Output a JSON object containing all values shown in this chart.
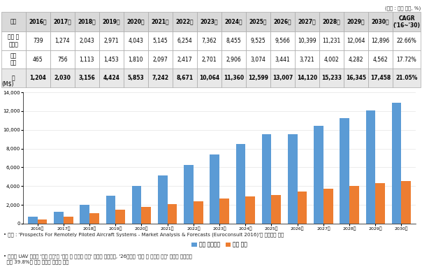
{
  "years": [
    "2016년",
    "2017년",
    "2018년",
    "2019년",
    "2020년",
    "2021년",
    "2022년",
    "2023년",
    "2024년",
    "2025년",
    "2026년",
    "2027년",
    "2028년",
    "2029년",
    "2030년"
  ],
  "operations": [
    739,
    1274,
    2043,
    2971,
    4043,
    5145,
    6254,
    7362,
    8455,
    9525,
    9566,
    10399,
    11231,
    12064,
    12896
  ],
  "manufacturing": [
    465,
    756,
    1113,
    1453,
    1810,
    2097,
    2417,
    2701,
    2906,
    3074,
    3441,
    3721,
    4002,
    4282,
    4562
  ],
  "total": [
    1204,
    2030,
    3156,
    4424,
    5853,
    7242,
    8671,
    10064,
    11360,
    12599,
    13007,
    14120,
    15233,
    16345,
    17458
  ],
  "bar_color_ops": "#5B9BD5",
  "bar_color_mfg": "#ED7D31",
  "unit_label": "(단위 : 백만 달러, %)",
  "y_label": "(M$)",
  "ylim": [
    0,
    14000
  ],
  "yticks": [
    0,
    2000,
    4000,
    6000,
    8000,
    10000,
    12000,
    14000
  ],
  "legend_ops": "운용 및서비스",
  "legend_mfg": "기체 제작",
  "cagr_ops": "22.66%",
  "cagr_mfg": "17.72%",
  "cagr_total": "21.05%",
  "row1_label": "운용 및\n서비스",
  "row2_label": "기체\n제작",
  "row3_label": "계",
  "col_header": [
    "구분",
    "2016년",
    "2017년",
    "2018년",
    "2019년",
    "2020년",
    "2021년",
    "2022년",
    "2023년",
    "2024년",
    "2025년",
    "2026년",
    "2027년",
    "2028년",
    "2029년",
    "2030년",
    "CAGR\n('16~'30)"
  ],
  "footnote1": "• 출잘 : 'Prospects For Remotely Piloted Aircraft Systems - Market Analysis & Forecasts (Euroconsult 2016)'를 참고하여 작성",
  "footnote2": "• 상언용 UAV 시장은 '기체 제작'과 '운용 및 서비스 활용' 분야로 구분되며, '26년까지 '운용 및 서비스 활용' 시장이 연평균성\n  장률 39.8%로 대폭 성장할 것으로 예측"
}
